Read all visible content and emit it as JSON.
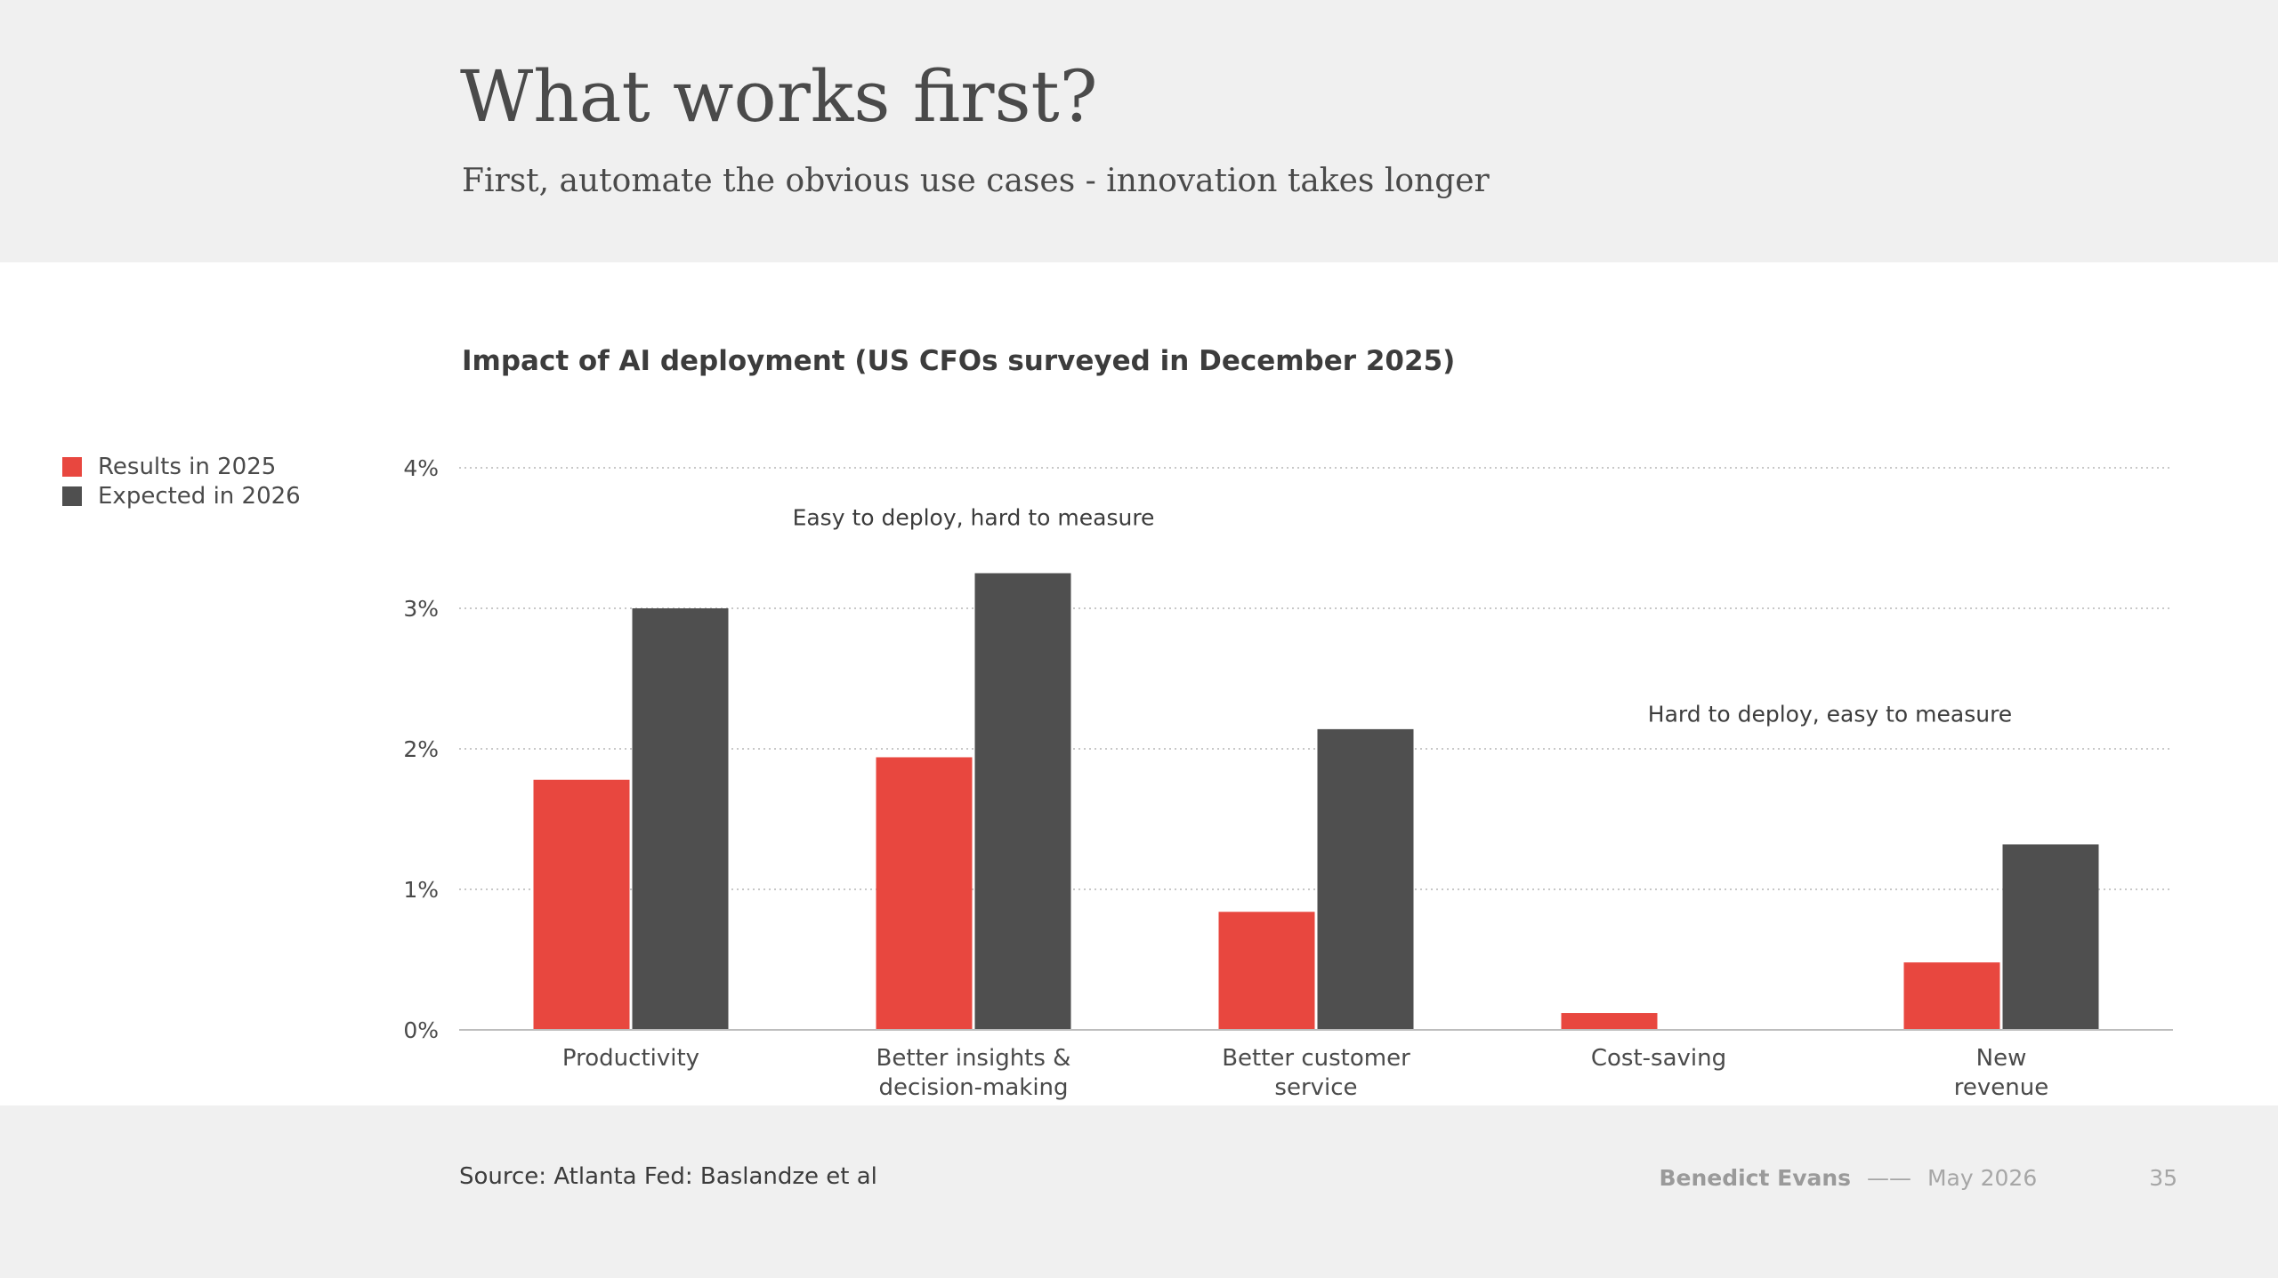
{
  "header": {
    "title": "What works first?",
    "subtitle": "First, automate the obvious use cases - innovation takes longer"
  },
  "footer": {
    "source": "Source: Atlanta Fed: Baslandze et al",
    "author": "Benedict Evans",
    "separator": "——",
    "date": "May 2026",
    "page_number": "35"
  },
  "colors": {
    "results_2025": "#e8473f",
    "expected_2026": "#4f4f4f",
    "grid": "#c8c8c8",
    "axis": "#bdbdbd",
    "text": "#4a4a4a"
  },
  "chart_data": {
    "type": "bar",
    "title": "Impact of AI deployment (US CFOs surveyed in December 2025)",
    "categories": [
      [
        "Productivity"
      ],
      [
        "Better insights &",
        "decision-making"
      ],
      [
        "Better customer",
        "service"
      ],
      [
        "Cost-saving"
      ],
      [
        "New",
        "revenue"
      ]
    ],
    "series": [
      {
        "name": "Results in 2025",
        "values": [
          1.78,
          1.94,
          0.84,
          0.12,
          0.48
        ]
      },
      {
        "name": "Expected in 2026",
        "values": [
          3.0,
          3.25,
          2.14,
          0.0,
          1.32
        ]
      }
    ],
    "y_ticks": [
      "0%",
      "1%",
      "2%",
      "3%",
      "4%"
    ],
    "ylim": [
      0,
      4
    ],
    "grid": true,
    "legend_position": "left",
    "annotations": [
      {
        "text": "Easy to deploy, hard to measure",
        "x": 1.0,
        "y": 3.65
      },
      {
        "text": "Hard to deploy, easy to measure",
        "x": 3.5,
        "y": 2.25
      }
    ]
  }
}
